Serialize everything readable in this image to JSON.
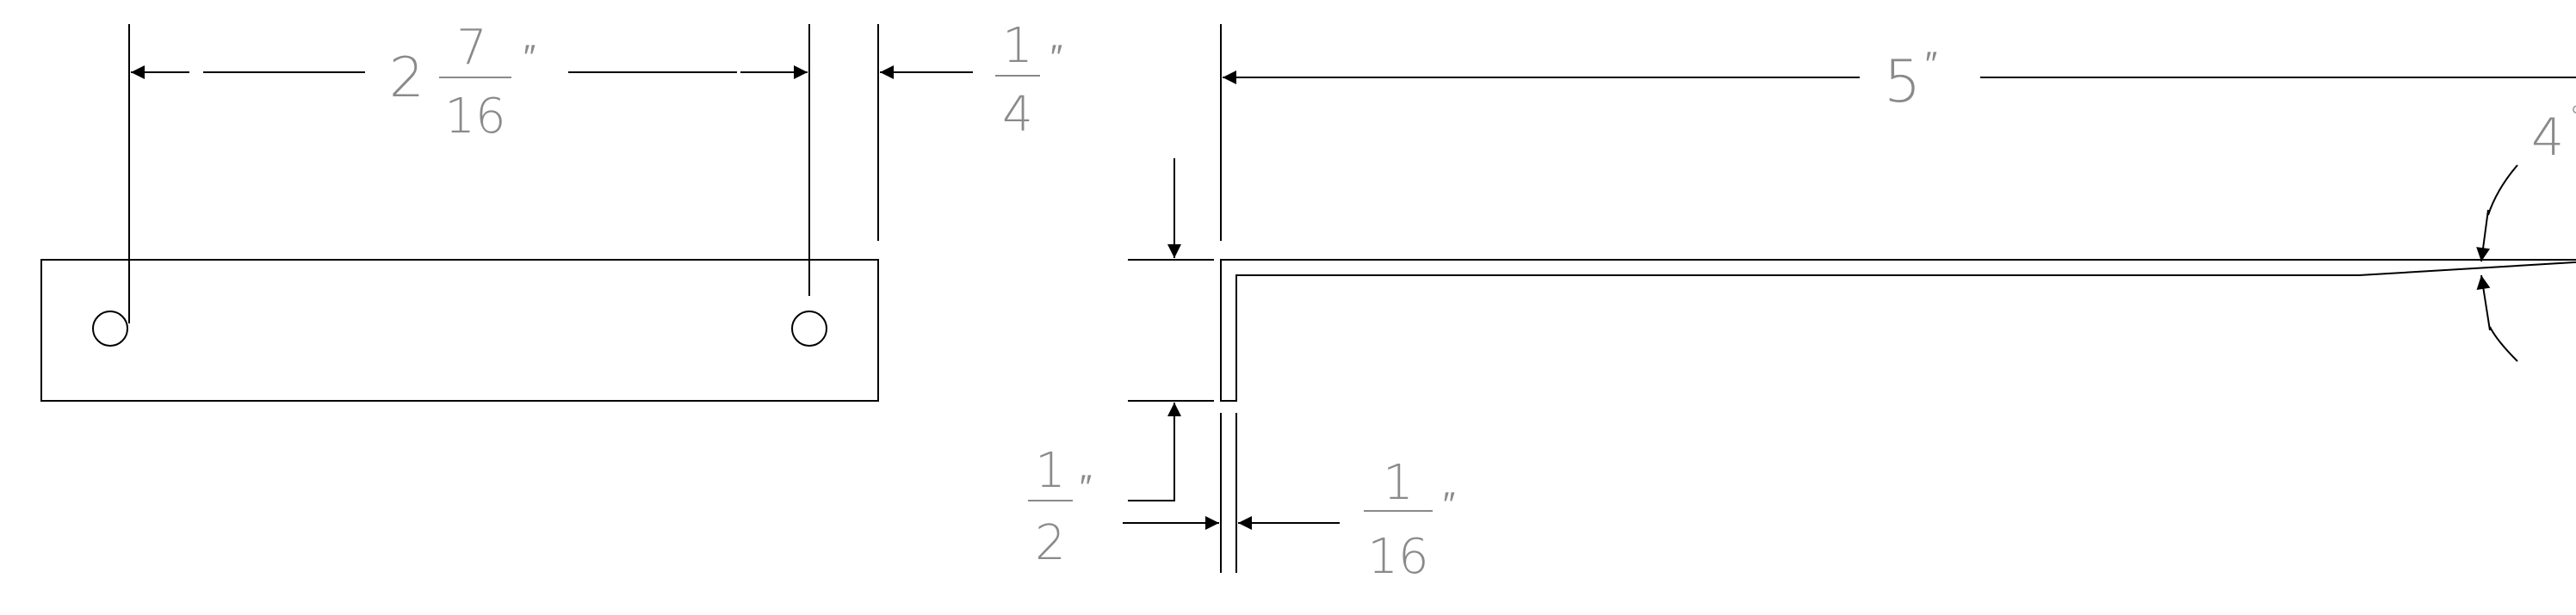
{
  "drawing": {
    "line_color": "#000000",
    "text_color": "#8a8a8a",
    "background": "#ffffff"
  },
  "top_view": {
    "hole_spacing": {
      "whole": "2",
      "numerator": "7",
      "denominator": "16",
      "unit": "″"
    },
    "edge_offset": {
      "numerator": "1",
      "denominator": "4",
      "unit": "″"
    }
  },
  "side_view": {
    "length": {
      "value": "5",
      "unit": "″"
    },
    "angle": {
      "value": "4",
      "unit": "°"
    },
    "height": {
      "numerator": "1",
      "denominator": "2",
      "unit": "″"
    },
    "thickness": {
      "numerator": "1",
      "denominator": "16",
      "unit": "″"
    }
  }
}
